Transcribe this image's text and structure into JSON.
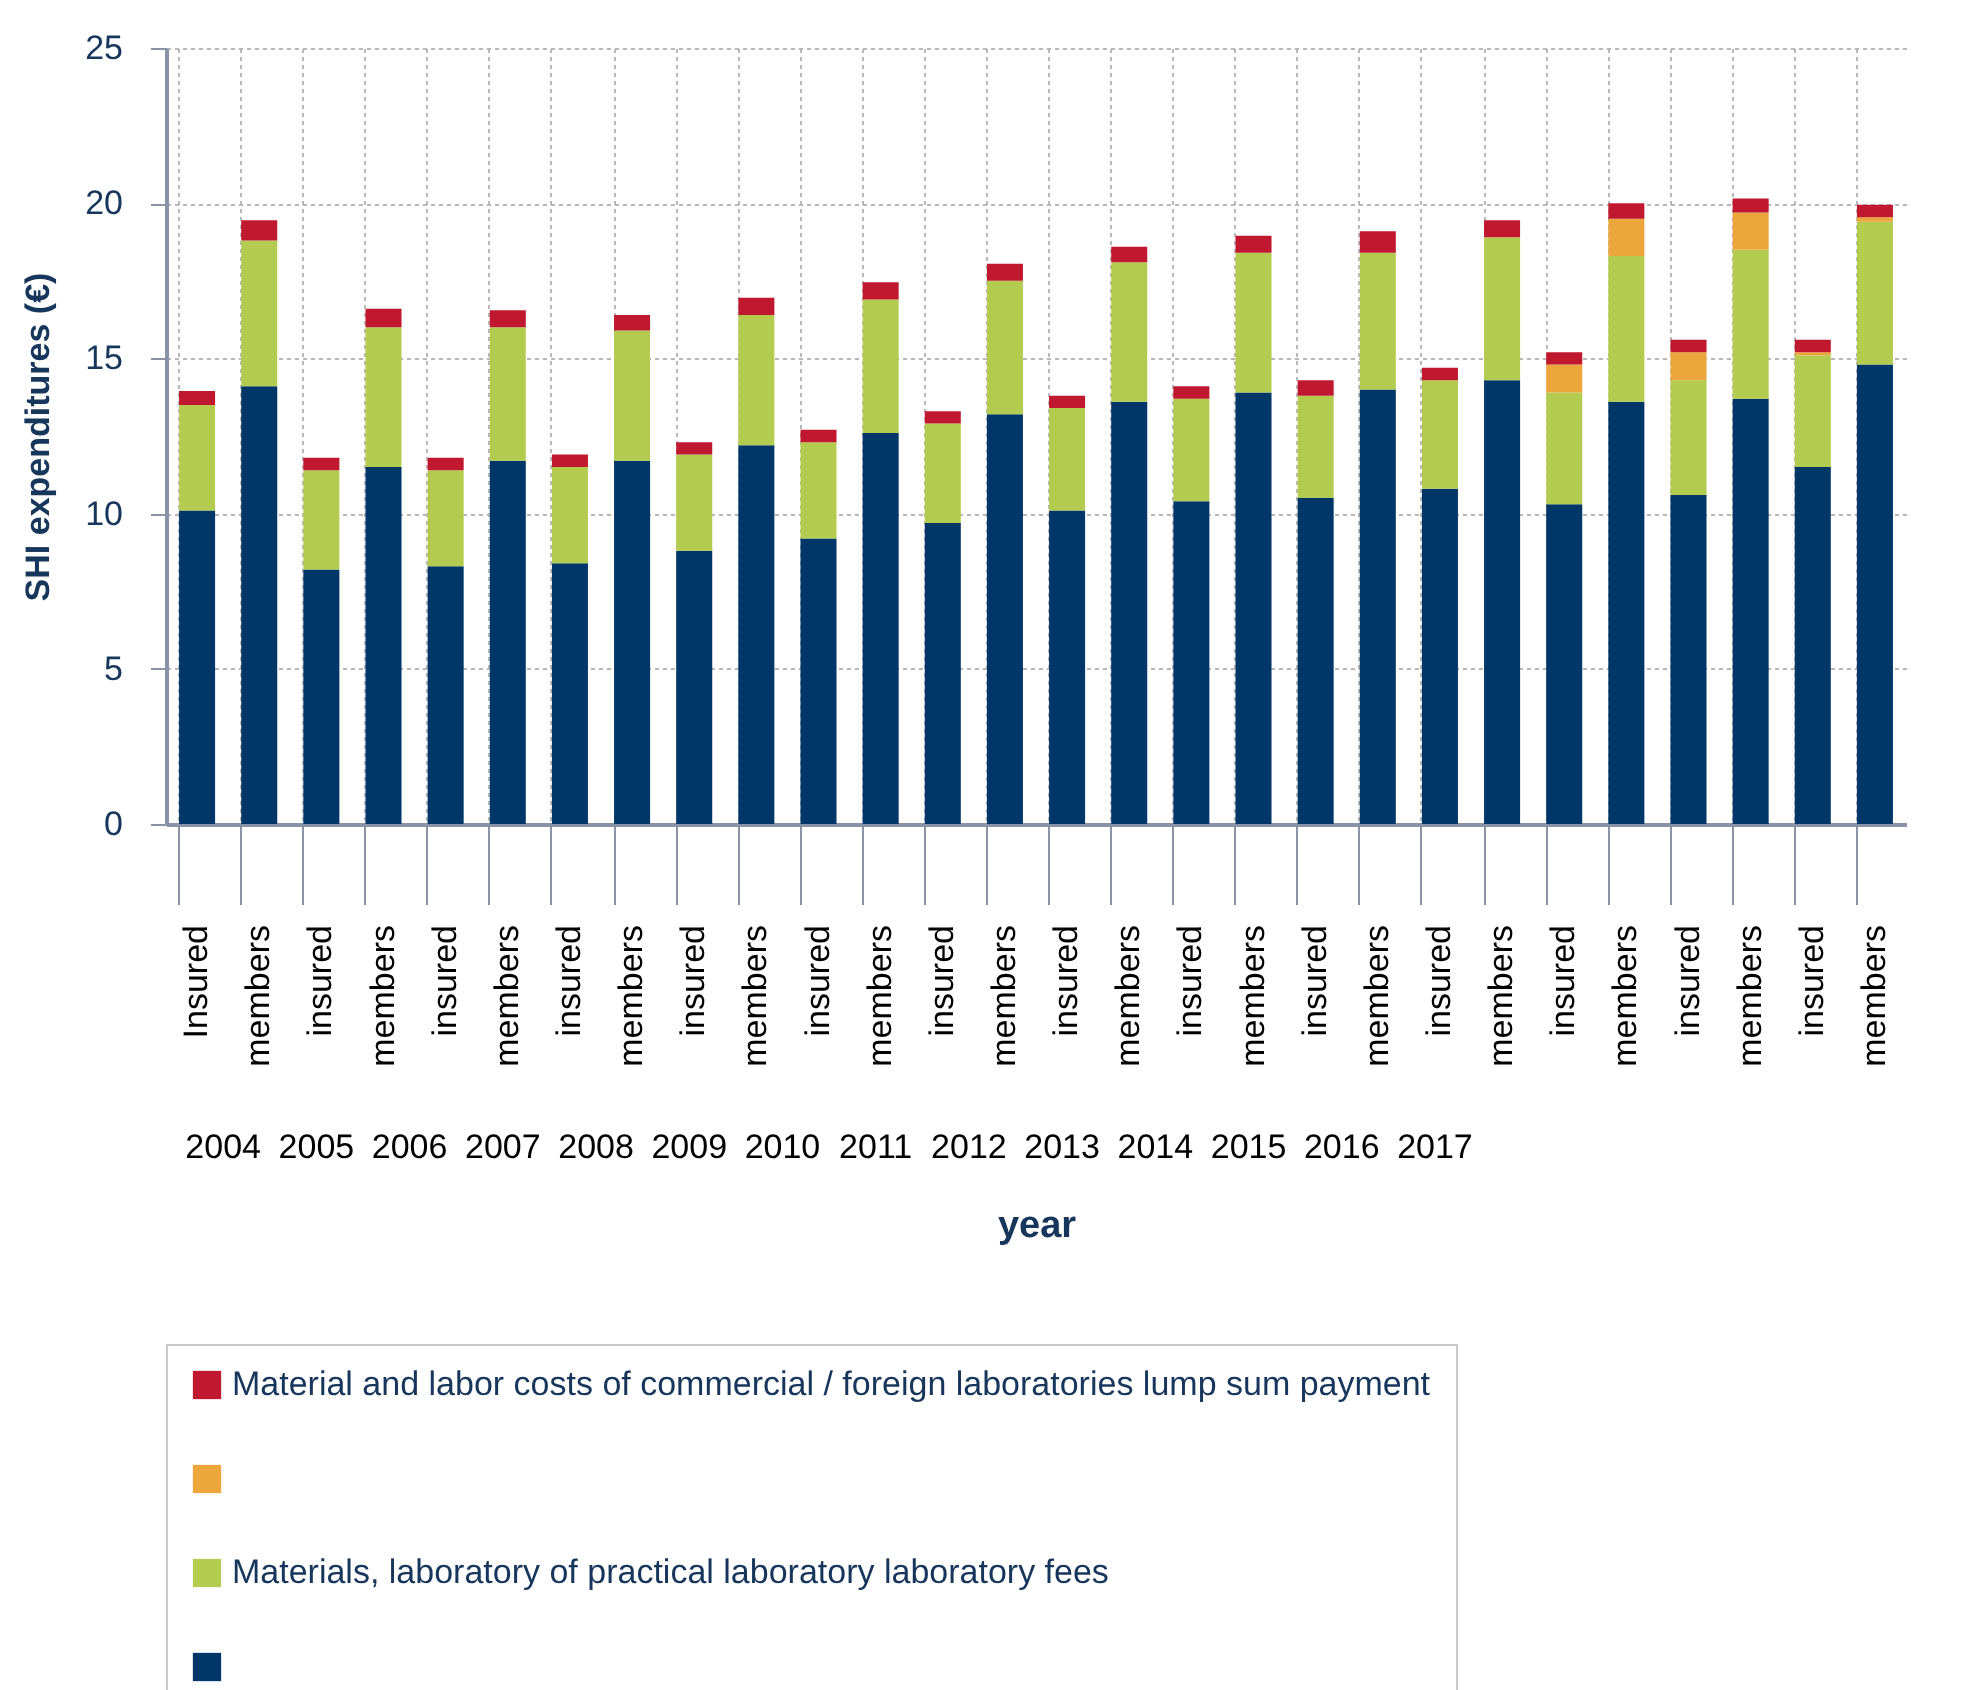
{
  "chart_data": {
    "type": "bar",
    "stacked": true,
    "xlabel": "year",
    "ylabel": "SHI expenditures (€)",
    "categories": [
      "Insured",
      "members",
      "insured",
      "members",
      "insured",
      "members",
      "insured",
      "members",
      "insured",
      "members",
      "insured",
      "members",
      "insured",
      "members",
      "insured",
      "members",
      "insured",
      "members",
      "insured",
      "members",
      "insured",
      "members",
      "insured",
      "members",
      "insured",
      "members",
      "insured",
      "members"
    ],
    "annotations": [
      "2004",
      "2005",
      "2006",
      "2007",
      "2008",
      "2009",
      "2010",
      "2011",
      "2012",
      "2013",
      "2014",
      "2015",
      "2016",
      "2017"
    ],
    "series": [
      {
        "color": "#003768",
        "values": [
          10.1,
          14.1,
          8.2,
          11.5,
          8.3,
          11.7,
          8.4,
          11.7,
          8.8,
          12.2,
          9.2,
          12.6,
          9.7,
          13.2,
          10.1,
          13.6,
          10.4,
          13.9,
          10.5,
          14.0,
          10.8,
          14.3,
          10.3,
          13.6,
          10.6,
          13.7,
          11.5,
          14.8
        ]
      },
      {
        "name": "Materials, laboratory of practical laboratory laboratory fees",
        "color": "#b3cc4f",
        "values": [
          3.4,
          4.7,
          3.2,
          4.5,
          3.1,
          4.3,
          3.1,
          4.2,
          3.1,
          4.2,
          3.1,
          4.3,
          3.2,
          4.3,
          3.3,
          4.5,
          3.3,
          4.5,
          3.3,
          4.4,
          3.5,
          4.6,
          3.6,
          4.7,
          3.7,
          4.8,
          3.6,
          4.6
        ]
      },
      {
        "color": "#eca63c",
        "values": [
          null,
          null,
          null,
          null,
          null,
          null,
          null,
          null,
          null,
          null,
          null,
          null,
          null,
          null,
          null,
          null,
          null,
          null,
          null,
          null,
          null,
          null,
          0.9,
          1.2,
          0.9,
          1.2,
          0.1,
          0.15
        ]
      },
      {
        "name": "Material and labor costs of commercial / foreign laboratories lump sum payment",
        "color": "#c0182f",
        "values": [
          0.45,
          0.65,
          0.4,
          0.6,
          0.4,
          0.55,
          0.4,
          0.5,
          0.4,
          0.55,
          0.4,
          0.55,
          0.4,
          0.55,
          0.4,
          0.5,
          0.4,
          0.55,
          0.5,
          0.7,
          0.4,
          0.55,
          0.4,
          0.5,
          0.4,
          0.45,
          0.4,
          0.4
        ]
      }
    ],
    "ylim": [
      0,
      25
    ],
    "yticks": [
      0,
      5,
      10,
      15,
      20,
      25
    ],
    "grid": true,
    "legend": "bottom"
  }
}
